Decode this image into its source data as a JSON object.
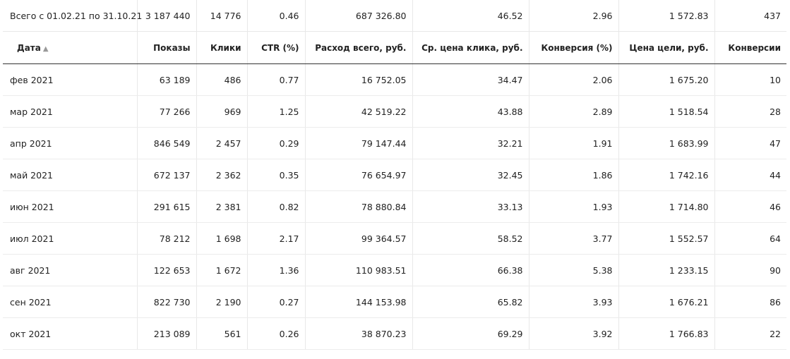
{
  "totals": {
    "label": "Всего с 01.02.21 по 31.10.21",
    "impressions": "3 187 440",
    "clicks": "14 776",
    "ctr": "0.46",
    "spend": "687 326.80",
    "avg_cpc": "46.52",
    "conversion_rate": "2.96",
    "cost_per_goal": "1 572.83",
    "conversions": "437"
  },
  "columns": {
    "date": "Дата",
    "sort_indicator": "▲",
    "impressions": "Показы",
    "clicks": "Клики",
    "ctr": "CTR (%)",
    "spend": "Расход всего, руб.",
    "avg_cpc": "Ср. цена клика, руб.",
    "conversion_rate": "Конверсия (%)",
    "cost_per_goal": "Цена цели, руб.",
    "conversions": "Конверсии"
  },
  "rows": [
    {
      "date": "фев 2021",
      "impressions": "63 189",
      "clicks": "486",
      "ctr": "0.77",
      "spend": "16 752.05",
      "avg_cpc": "34.47",
      "conversion_rate": "2.06",
      "cost_per_goal": "1 675.20",
      "conversions": "10"
    },
    {
      "date": "мар 2021",
      "impressions": "77 266",
      "clicks": "969",
      "ctr": "1.25",
      "spend": "42 519.22",
      "avg_cpc": "43.88",
      "conversion_rate": "2.89",
      "cost_per_goal": "1 518.54",
      "conversions": "28"
    },
    {
      "date": "апр 2021",
      "impressions": "846 549",
      "clicks": "2 457",
      "ctr": "0.29",
      "spend": "79 147.44",
      "avg_cpc": "32.21",
      "conversion_rate": "1.91",
      "cost_per_goal": "1 683.99",
      "conversions": "47"
    },
    {
      "date": "май 2021",
      "impressions": "672 137",
      "clicks": "2 362",
      "ctr": "0.35",
      "spend": "76 654.97",
      "avg_cpc": "32.45",
      "conversion_rate": "1.86",
      "cost_per_goal": "1 742.16",
      "conversions": "44"
    },
    {
      "date": "июн 2021",
      "impressions": "291 615",
      "clicks": "2 381",
      "ctr": "0.82",
      "spend": "78 880.84",
      "avg_cpc": "33.13",
      "conversion_rate": "1.93",
      "cost_per_goal": "1 714.80",
      "conversions": "46"
    },
    {
      "date": "июл 2021",
      "impressions": "78 212",
      "clicks": "1 698",
      "ctr": "2.17",
      "spend": "99 364.57",
      "avg_cpc": "58.52",
      "conversion_rate": "3.77",
      "cost_per_goal": "1 552.57",
      "conversions": "64"
    },
    {
      "date": "авг 2021",
      "impressions": "122 653",
      "clicks": "1 672",
      "ctr": "1.36",
      "spend": "110 983.51",
      "avg_cpc": "66.38",
      "conversion_rate": "5.38",
      "cost_per_goal": "1 233.15",
      "conversions": "90"
    },
    {
      "date": "сен 2021",
      "impressions": "822 730",
      "clicks": "2 190",
      "ctr": "0.27",
      "spend": "144 153.98",
      "avg_cpc": "65.82",
      "conversion_rate": "3.93",
      "cost_per_goal": "1 676.21",
      "conversions": "86"
    },
    {
      "date": "окт 2021",
      "impressions": "213 089",
      "clicks": "561",
      "ctr": "0.26",
      "spend": "38 870.23",
      "avg_cpc": "69.29",
      "conversion_rate": "3.92",
      "cost_per_goal": "1 766.83",
      "conversions": "22"
    }
  ]
}
